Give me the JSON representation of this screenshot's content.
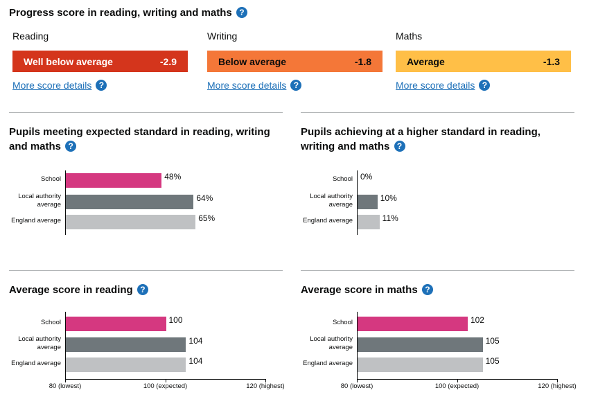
{
  "progress": {
    "title": "Progress score in reading, writing and maths",
    "help_icon": "question-circle-icon",
    "subjects": [
      {
        "name": "Reading",
        "band": "Well below average",
        "score": "-2.9",
        "color": "#d4351c",
        "text_color": "#ffffff",
        "link": "More score details"
      },
      {
        "name": "Writing",
        "band": "Below average",
        "score": "-1.8",
        "color": "#f47738",
        "text_color": "#0b0c0c",
        "link": "More score details"
      },
      {
        "name": "Maths",
        "band": "Average",
        "score": "-1.3",
        "color": "#ffbf47",
        "text_color": "#0b0c0c",
        "link": "More score details"
      }
    ]
  },
  "colors": {
    "school": "#d53880",
    "local_authority": "#6f777b",
    "england": "#bfc1c3",
    "link": "#1d70b8"
  },
  "chart_data": [
    {
      "type": "bar",
      "title": "Pupils meeting expected standard in reading, writing and maths",
      "categories": [
        "School",
        "Local authority average",
        "England average"
      ],
      "values": [
        48,
        64,
        65
      ],
      "labels": [
        "48%",
        "64%",
        "65%"
      ],
      "xlim": [
        0,
        100
      ]
    },
    {
      "type": "bar",
      "title": "Pupils achieving at a higher standard in reading, writing and maths",
      "categories": [
        "School",
        "Local authority average",
        "England average"
      ],
      "values": [
        0,
        10,
        11
      ],
      "labels": [
        "0%",
        "10%",
        "11%"
      ],
      "xlim": [
        0,
        100
      ]
    },
    {
      "type": "bar",
      "title": "Average score in reading",
      "categories": [
        "School",
        "Local authority average",
        "England average"
      ],
      "values": [
        100,
        104,
        104
      ],
      "labels": [
        "100",
        "104",
        "104"
      ],
      "xlim": [
        80,
        120
      ],
      "ticks": [
        "80 (lowest)",
        "100 (expected)",
        "120 (highest)"
      ]
    },
    {
      "type": "bar",
      "title": "Average score in maths",
      "categories": [
        "School",
        "Local authority average",
        "England average"
      ],
      "values": [
        102,
        105,
        105
      ],
      "labels": [
        "102",
        "105",
        "105"
      ],
      "xlim": [
        80,
        120
      ],
      "ticks": [
        "80 (lowest)",
        "100 (expected)",
        "120 (highest)"
      ]
    }
  ]
}
